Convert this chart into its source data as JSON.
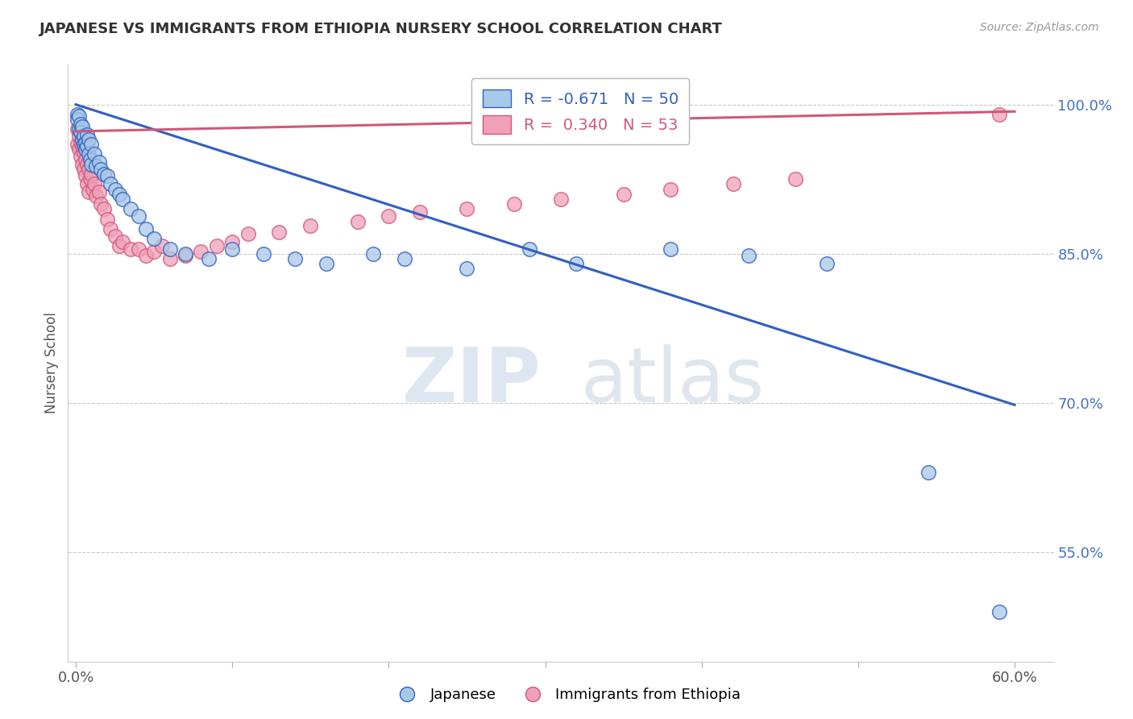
{
  "title": "JAPANESE VS IMMIGRANTS FROM ETHIOPIA NURSERY SCHOOL CORRELATION CHART",
  "source": "Source: ZipAtlas.com",
  "ylabel": "Nursery School",
  "x_tick_labels_edge": [
    "0.0%",
    "60.0%"
  ],
  "x_tick_positions_edge": [
    0.0,
    0.6
  ],
  "y_tick_labels": [
    "100.0%",
    "85.0%",
    "70.0%",
    "55.0%"
  ],
  "y_tick_positions": [
    1.0,
    0.85,
    0.7,
    0.55
  ],
  "xlim": [
    -0.005,
    0.625
  ],
  "ylim": [
    0.44,
    1.04
  ],
  "blue_color": "#A8C8E8",
  "pink_color": "#F0A0B8",
  "blue_line_color": "#3060C0",
  "pink_line_color": "#D05878",
  "legend_blue_label_r": "R = -0.671",
  "legend_blue_label_n": "N = 50",
  "legend_pink_label_r": "R =  0.340",
  "legend_pink_label_n": "N = 53",
  "legend_japanese": "Japanese",
  "legend_ethiopia": "Immigrants from Ethiopia",
  "blue_scatter_x": [
    0.001,
    0.001,
    0.002,
    0.002,
    0.003,
    0.003,
    0.004,
    0.004,
    0.005,
    0.005,
    0.006,
    0.006,
    0.007,
    0.007,
    0.008,
    0.008,
    0.009,
    0.01,
    0.01,
    0.012,
    0.013,
    0.015,
    0.016,
    0.018,
    0.02,
    0.022,
    0.025,
    0.028,
    0.03,
    0.035,
    0.04,
    0.045,
    0.05,
    0.06,
    0.07,
    0.085,
    0.1,
    0.12,
    0.14,
    0.16,
    0.19,
    0.21,
    0.25,
    0.29,
    0.32,
    0.38,
    0.43,
    0.48,
    0.545,
    0.59
  ],
  "blue_scatter_y": [
    0.99,
    0.985,
    0.988,
    0.975,
    0.98,
    0.972,
    0.978,
    0.965,
    0.968,
    0.96,
    0.962,
    0.955,
    0.97,
    0.958,
    0.965,
    0.95,
    0.945,
    0.96,
    0.94,
    0.95,
    0.938,
    0.942,
    0.935,
    0.93,
    0.928,
    0.92,
    0.915,
    0.91,
    0.905,
    0.895,
    0.888,
    0.875,
    0.865,
    0.855,
    0.85,
    0.845,
    0.855,
    0.85,
    0.845,
    0.84,
    0.85,
    0.845,
    0.835,
    0.855,
    0.84,
    0.855,
    0.848,
    0.84,
    0.63,
    0.49
  ],
  "pink_scatter_x": [
    0.001,
    0.001,
    0.002,
    0.002,
    0.003,
    0.003,
    0.004,
    0.004,
    0.005,
    0.005,
    0.006,
    0.006,
    0.007,
    0.007,
    0.008,
    0.008,
    0.009,
    0.01,
    0.011,
    0.012,
    0.013,
    0.015,
    0.016,
    0.018,
    0.02,
    0.022,
    0.025,
    0.028,
    0.03,
    0.035,
    0.04,
    0.045,
    0.05,
    0.055,
    0.06,
    0.07,
    0.08,
    0.09,
    0.1,
    0.11,
    0.13,
    0.15,
    0.18,
    0.2,
    0.22,
    0.25,
    0.28,
    0.31,
    0.35,
    0.38,
    0.42,
    0.46,
    0.59
  ],
  "pink_scatter_y": [
    0.975,
    0.96,
    0.968,
    0.955,
    0.962,
    0.948,
    0.958,
    0.94,
    0.952,
    0.935,
    0.945,
    0.928,
    0.94,
    0.92,
    0.935,
    0.912,
    0.925,
    0.93,
    0.915,
    0.92,
    0.908,
    0.912,
    0.9,
    0.895,
    0.885,
    0.875,
    0.868,
    0.858,
    0.862,
    0.855,
    0.855,
    0.848,
    0.852,
    0.858,
    0.845,
    0.848,
    0.852,
    0.858,
    0.862,
    0.87,
    0.872,
    0.878,
    0.882,
    0.888,
    0.892,
    0.895,
    0.9,
    0.905,
    0.91,
    0.915,
    0.92,
    0.925,
    0.99
  ],
  "blue_trendline_x": [
    0.0,
    0.6
  ],
  "blue_trendline_y": [
    1.0,
    0.698
  ],
  "pink_trendline_x": [
    0.0,
    0.6
  ],
  "pink_trendline_y": [
    0.973,
    0.993
  ],
  "watermark_zip": "ZIP",
  "watermark_atlas": "atlas",
  "background_color": "#ffffff",
  "grid_color": "#c8c8c8"
}
